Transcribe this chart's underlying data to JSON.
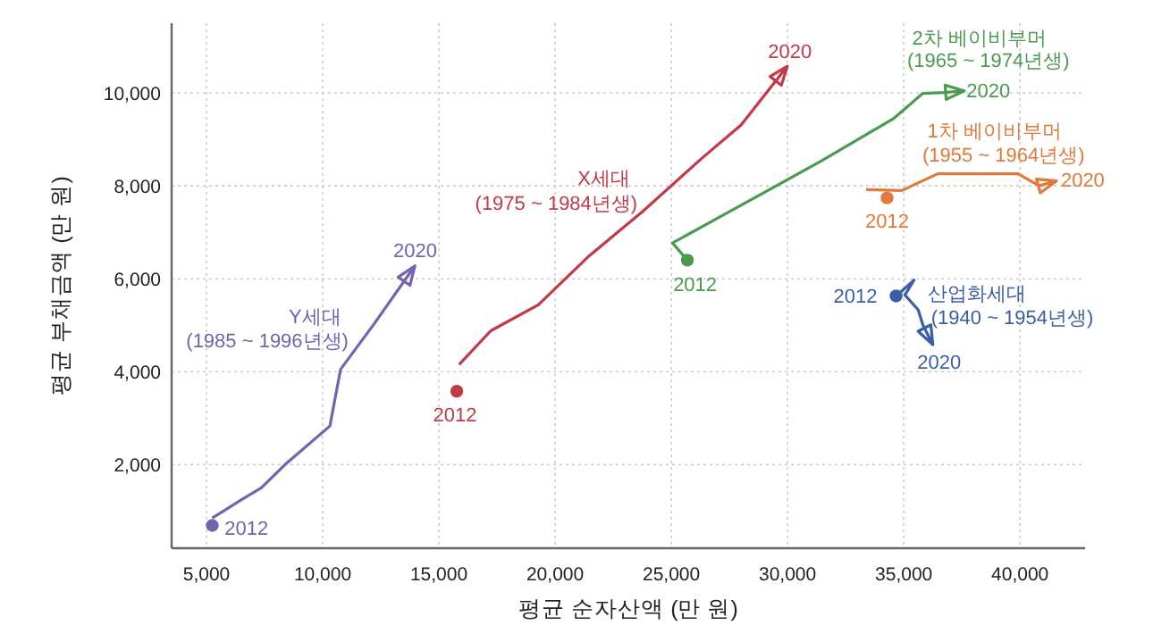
{
  "chart_data": {
    "type": "line",
    "xlabel": "평균 순자산액 (만 원)",
    "ylabel": "평균 부채금액 (만 원)",
    "xlim": [
      3500,
      42800
    ],
    "ylim": [
      200,
      11500
    ],
    "xticks": [
      {
        "value": 5000,
        "label": "5,000"
      },
      {
        "value": 10000,
        "label": "10,000"
      },
      {
        "value": 15000,
        "label": "15,000"
      },
      {
        "value": 20000,
        "label": "20,000"
      },
      {
        "value": 25000,
        "label": "25,000"
      },
      {
        "value": 30000,
        "label": "30,000"
      },
      {
        "value": 35000,
        "label": "35,000"
      },
      {
        "value": 40000,
        "label": "40,000"
      }
    ],
    "yticks": [
      {
        "value": 2000,
        "label": "2,000"
      },
      {
        "value": 4000,
        "label": "4,000"
      },
      {
        "value": 6000,
        "label": "6,000"
      },
      {
        "value": 8000,
        "label": "8,000"
      },
      {
        "value": 10000,
        "label": "10,000"
      }
    ],
    "grid": true,
    "line_style": "solid",
    "series": [
      {
        "color": "#7463b0",
        "x": [
          5250,
          6460,
          7360,
          8380,
          10310,
          10770,
          12230,
          13900
        ],
        "values": [
          850,
          1230,
          1500,
          2000,
          2830,
          4050,
          5040,
          6230
        ]
      },
      {
        "color": "#c23a48",
        "x": [
          15870,
          17230,
          19280,
          21460,
          23770,
          26330,
          28000,
          29920
        ],
        "values": [
          4150,
          4880,
          5440,
          6490,
          7450,
          8600,
          9310,
          10530
        ]
      },
      {
        "color": "#4a9a50",
        "x": [
          25690,
          25050,
          29150,
          31460,
          34540,
          35820,
          36720,
          37490
        ],
        "values": [
          6400,
          6770,
          7900,
          8540,
          9440,
          9990,
          10010,
          10040
        ]
      },
      {
        "color": "#e07a3c",
        "x": [
          33380,
          34920,
          36460,
          39920,
          40820,
          41460
        ],
        "values": [
          7920,
          7900,
          8260,
          8260,
          8000,
          8090
        ]
      },
      {
        "color": "#3a5fa8",
        "x": [
          34670,
          35440,
          35050,
          35620,
          35820,
          36200
        ],
        "values": [
          5630,
          5970,
          5650,
          5330,
          5010,
          4630
        ]
      },
      {
        "type": "scatter",
        "colors": [
          "#7463b0",
          "#c23a48",
          "#4a9a50",
          "#e07a3c",
          "#3a5fa8"
        ],
        "x": [
          5250,
          15770,
          25690,
          34280,
          34670
        ],
        "values": [
          690,
          3580,
          6400,
          7740,
          5630
        ]
      }
    ],
    "annotations": [
      "2012",
      "2020",
      "Y세대",
      "(1985 ~ 1996년생)",
      "2012",
      "2020",
      "X세대",
      "(1975 ~ 1984년생)",
      "2012",
      "2020",
      "2차 베이비부머",
      "(1965 ~ 1974년생)",
      "2012",
      "2020",
      "1차 베이비부머",
      "(1955 ~ 1964년생)",
      "2012",
      "2020",
      "산업화세대",
      "(1940 ~ 1954년생)"
    ]
  }
}
